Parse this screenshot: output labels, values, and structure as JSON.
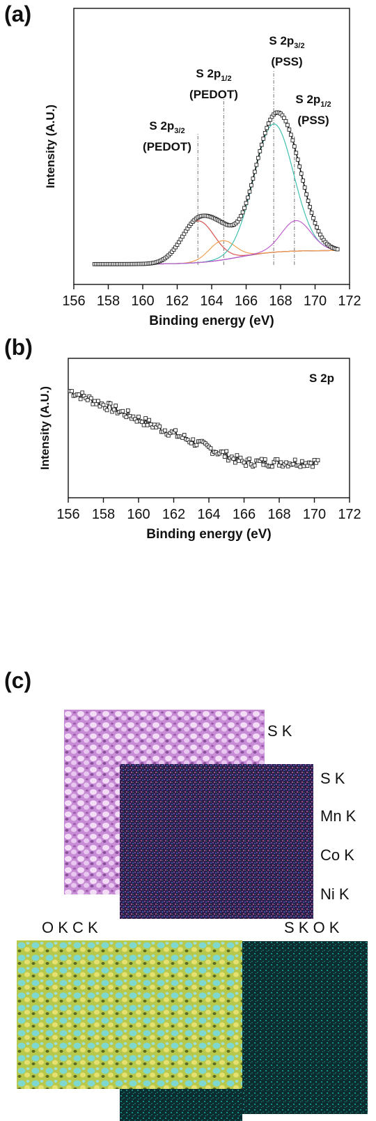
{
  "panels": {
    "a": "(a)",
    "b": "(b)",
    "c": "(c)"
  },
  "chart_data": [
    {
      "type": "line",
      "panel": "a",
      "xlabel": "Binding energy (eV)",
      "ylabel": "Intensity (A.U.)",
      "xlim": [
        156,
        172
      ],
      "xticks": [
        156,
        158,
        160,
        162,
        164,
        166,
        168,
        170,
        172
      ],
      "annotations": [
        {
          "main": "S 2p",
          "sub": "3/2",
          "paren": "(PEDOT)",
          "x": 163.2
        },
        {
          "main": "S 2p",
          "sub": "1/2",
          "paren": "(PEDOT)",
          "x": 164.7
        },
        {
          "main": "S 2p",
          "sub": "3/2",
          "paren": "(PSS)",
          "x": 167.6
        },
        {
          "main": "S 2p",
          "sub": "1/2",
          "paren": "(PSS)",
          "x": 168.8
        }
      ],
      "components": [
        {
          "center": 163.2,
          "height": 0.26,
          "width": 0.95,
          "color": "#d9534f"
        },
        {
          "center": 164.6,
          "height": 0.12,
          "width": 0.75,
          "color": "#f0a050"
        },
        {
          "center": 167.6,
          "height": 0.8,
          "width": 1.15,
          "color": "#40c0b0"
        },
        {
          "center": 168.9,
          "height": 0.19,
          "width": 0.85,
          "color": "#c060d0"
        }
      ],
      "measured_x": [
        157.2,
        171.3
      ],
      "baseline": {
        "color": "#5a3a7a"
      }
    },
    {
      "type": "line",
      "panel": "b",
      "title": "S 2p",
      "xlabel": "Binding energy (eV)",
      "ylabel": "Intensity (A.U.)",
      "xlim": [
        156,
        172
      ],
      "xticks": [
        156,
        158,
        160,
        162,
        164,
        166,
        168,
        170,
        172
      ],
      "x_range": [
        156.1,
        170.2
      ],
      "trend_start": 0.9,
      "trend_end": 0.1
    }
  ],
  "maps": {
    "top_left": {
      "label": "S K",
      "color": "#d6a3e0"
    },
    "top_right": {
      "labels": [
        "S K",
        "Mn K",
        "Co K",
        "Ni K"
      ],
      "color": "#3a2a5a"
    },
    "bottom_left": {
      "label": "O K C K",
      "color": "#c8d860"
    },
    "bottom_right": {
      "label": "S K   O K",
      "color": "#0e3a3a"
    }
  }
}
